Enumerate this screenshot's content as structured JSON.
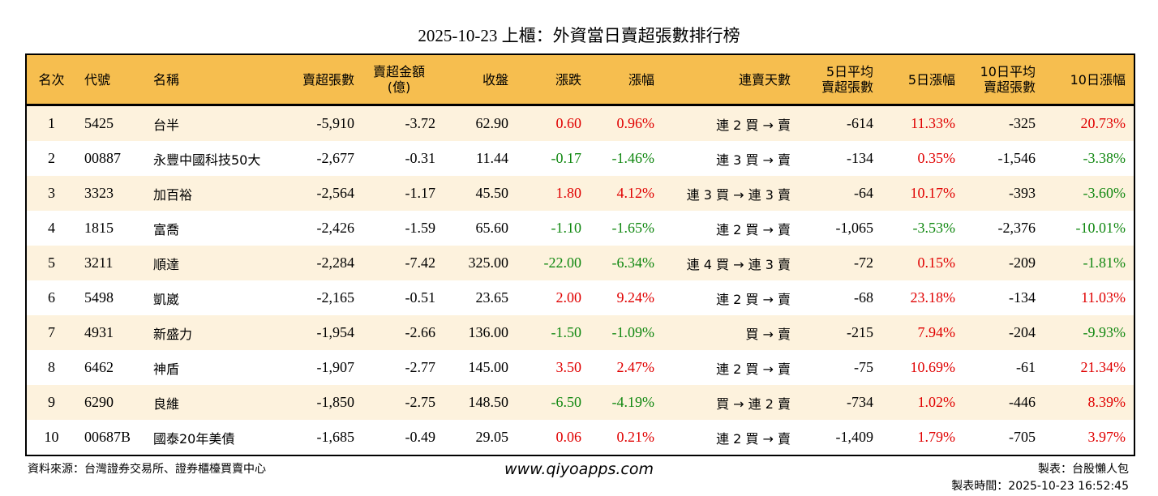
{
  "title": "2025-10-23 上櫃：外資當日賣超張數排行榜",
  "headers": [
    "名次",
    "代號",
    "名稱",
    "賣超張數",
    "賣超金額\n(億)",
    "收盤",
    "漲跌",
    "漲幅",
    "連賣天數",
    "5日平均\n賣超張數",
    "5日漲幅",
    "10日平均\n賣超張數",
    "10日漲幅"
  ],
  "colors": {
    "header": "#F6BE4F",
    "alt_row": "#FDF2DD",
    "up": "#E00000",
    "down": "#118811"
  },
  "rows": [
    [
      "1",
      "5425",
      "台半",
      "-5,910",
      "-3.72",
      "62.90",
      "0.60",
      "0.96%",
      "連 2 買 → 賣",
      "-614",
      "11.33%",
      "-325",
      "20.73%"
    ],
    [
      "2",
      "00887",
      "永豐中國科技50大",
      "-2,677",
      "-0.31",
      "11.44",
      "-0.17",
      "-1.46%",
      "連 3 買 → 賣",
      "-134",
      "0.35%",
      "-1,546",
      "-3.38%"
    ],
    [
      "3",
      "3323",
      "加百裕",
      "-2,564",
      "-1.17",
      "45.50",
      "1.80",
      "4.12%",
      "連 3 買 → 連 3 賣",
      "-64",
      "10.17%",
      "-393",
      "-3.60%"
    ],
    [
      "4",
      "1815",
      "富喬",
      "-2,426",
      "-1.59",
      "65.60",
      "-1.10",
      "-1.65%",
      "連 2 買 → 賣",
      "-1,065",
      "-3.53%",
      "-2,376",
      "-10.01%"
    ],
    [
      "5",
      "3211",
      "順達",
      "-2,284",
      "-7.42",
      "325.00",
      "-22.00",
      "-6.34%",
      "連 4 買 → 連 3 賣",
      "-72",
      "0.15%",
      "-209",
      "-1.81%"
    ],
    [
      "6",
      "5498",
      "凱崴",
      "-2,165",
      "-0.51",
      "23.65",
      "2.00",
      "9.24%",
      "連 2 買 → 賣",
      "-68",
      "23.18%",
      "-134",
      "11.03%"
    ],
    [
      "7",
      "4931",
      "新盛力",
      "-1,954",
      "-2.66",
      "136.00",
      "-1.50",
      "-1.09%",
      "買 → 賣",
      "-215",
      "7.94%",
      "-204",
      "-9.93%"
    ],
    [
      "8",
      "6462",
      "神盾",
      "-1,907",
      "-2.77",
      "145.00",
      "3.50",
      "2.47%",
      "連 2 買 → 賣",
      "-75",
      "10.69%",
      "-61",
      "21.34%"
    ],
    [
      "9",
      "6290",
      "良維",
      "-1,850",
      "-2.75",
      "148.50",
      "-6.50",
      "-4.19%",
      "買 → 連 2 賣",
      "-734",
      "1.02%",
      "-446",
      "8.39%"
    ],
    [
      "10",
      "00687B",
      "國泰20年美債",
      "-1,685",
      "-0.49",
      "29.05",
      "0.06",
      "0.21%",
      "連 2 買 → 賣",
      "-1,409",
      "1.79%",
      "-705",
      "3.97%"
    ]
  ],
  "footer": {
    "source": "資料來源：台灣證券交易所、證券櫃檯買賣中心",
    "url": "www.qiyoapps.com",
    "author": "製表：台股懶人包",
    "time": "製表時間：2025-10-23 16:52:45"
  }
}
